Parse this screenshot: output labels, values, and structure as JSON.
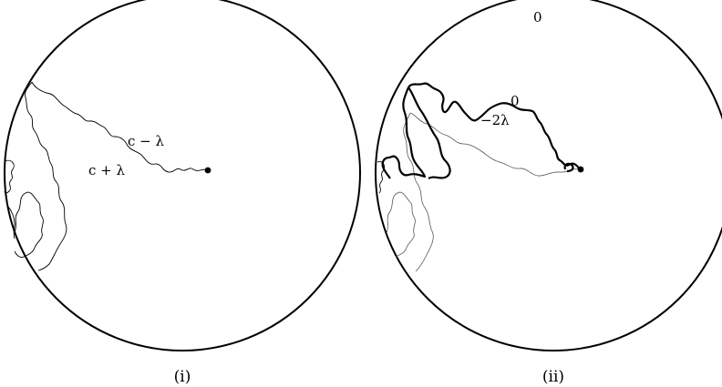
{
  "panel_i": {
    "caption": "(i)",
    "label_upper": "c − λ",
    "label_lower": "c + λ"
  },
  "panel_ii": {
    "caption": "(ii)",
    "label_top": "0",
    "label_flow_zero": "0",
    "label_flow_neg": "−2λ"
  }
}
